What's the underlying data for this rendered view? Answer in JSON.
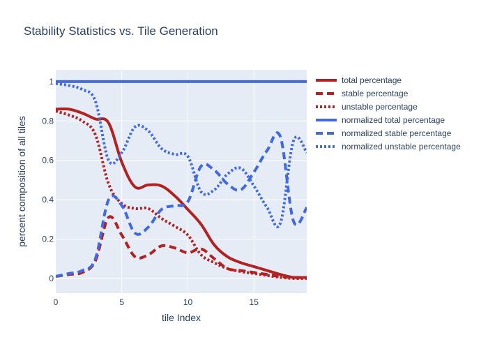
{
  "chart_data": {
    "type": "line",
    "title": "Stability Statistics vs. Tile Generation",
    "xlabel": "tile Index",
    "ylabel": "percent composition of all tiles",
    "xlim": [
      0,
      19
    ],
    "ylim": [
      -0.075,
      1.06
    ],
    "x_ticks": [
      0,
      5,
      10,
      15
    ],
    "x_tick_labels": [
      "0",
      "5",
      "10",
      "15"
    ],
    "y_ticks": [
      0,
      0.2,
      0.4,
      0.6,
      0.8,
      1
    ],
    "y_tick_labels": [
      "0",
      "0.2",
      "0.4",
      "0.6",
      "0.8",
      "1"
    ],
    "grid": true,
    "legend_position": "right",
    "x": [
      0,
      1,
      2,
      3,
      4,
      5,
      6,
      7,
      8,
      9,
      10,
      11,
      12,
      13,
      14,
      15,
      16,
      17,
      18,
      19
    ],
    "series": [
      {
        "name": "total percentage",
        "color": "#b22222",
        "dash": "solid",
        "values": [
          0.86,
          0.86,
          0.84,
          0.81,
          0.79,
          0.59,
          0.465,
          0.475,
          0.47,
          0.42,
          0.35,
          0.275,
          0.17,
          0.11,
          0.08,
          0.06,
          0.04,
          0.02,
          0.005,
          0.005
        ]
      },
      {
        "name": "stable percentage",
        "color": "#b22222",
        "dash": "dash",
        "values": [
          0.01,
          0.02,
          0.03,
          0.09,
          0.31,
          0.22,
          0.11,
          0.12,
          0.165,
          0.155,
          0.13,
          0.15,
          0.1,
          0.05,
          0.04,
          0.03,
          0.02,
          0.01,
          0.005,
          0.005
        ]
      },
      {
        "name": "unstable percentage",
        "color": "#b22222",
        "dash": "dot",
        "values": [
          0.85,
          0.83,
          0.8,
          0.73,
          0.48,
          0.38,
          0.355,
          0.355,
          0.305,
          0.265,
          0.22,
          0.12,
          0.08,
          0.05,
          0.035,
          0.025,
          0.015,
          0.005,
          0.0,
          0.0
        ]
      },
      {
        "name": "normalized total percentage",
        "color": "#4169e1",
        "dash": "solid",
        "values": [
          1,
          1,
          1,
          1,
          1,
          1,
          1,
          1,
          1,
          1,
          1,
          1,
          1,
          1,
          1,
          1,
          1,
          1,
          1,
          1
        ]
      },
      {
        "name": "normalized stable percentage",
        "color": "#4169e1",
        "dash": "dash",
        "values": [
          0.01,
          0.025,
          0.04,
          0.1,
          0.4,
          0.37,
          0.23,
          0.26,
          0.35,
          0.37,
          0.39,
          0.57,
          0.55,
          0.48,
          0.45,
          0.54,
          0.65,
          0.72,
          0.29,
          0.36
        ]
      },
      {
        "name": "normalized unstable percentage",
        "color": "#4169e1",
        "dash": "dot",
        "values": [
          0.99,
          0.98,
          0.96,
          0.9,
          0.6,
          0.64,
          0.77,
          0.75,
          0.66,
          0.63,
          0.62,
          0.44,
          0.45,
          0.53,
          0.56,
          0.47,
          0.36,
          0.28,
          0.7,
          0.64
        ]
      }
    ]
  }
}
